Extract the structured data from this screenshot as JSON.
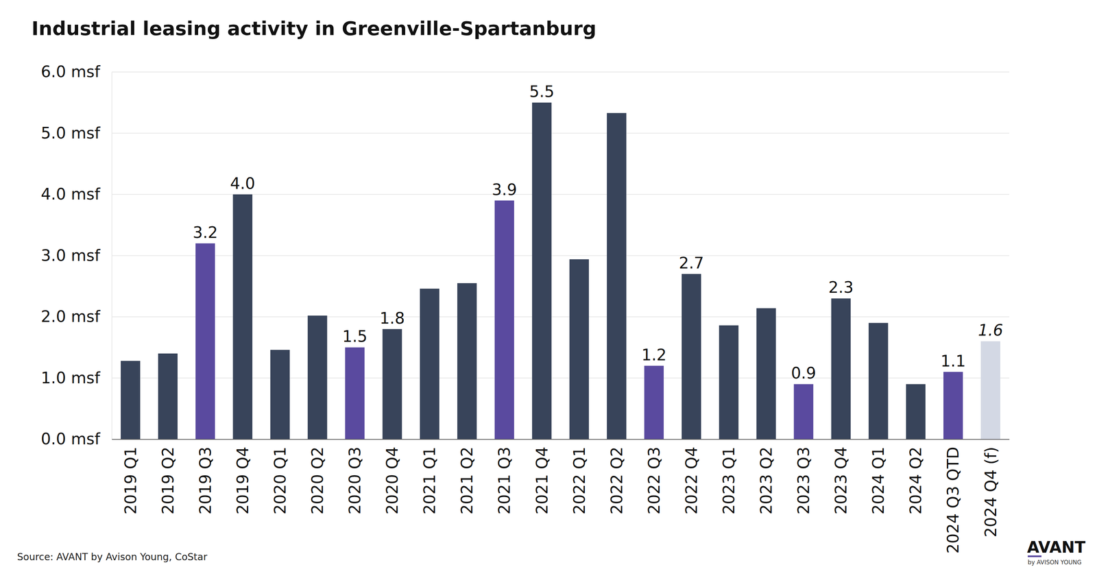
{
  "chart_data": {
    "type": "bar",
    "title": "Industrial leasing activity in Greenville-Spartanburg",
    "source": "Source: AVANT by Avison Young, CoStar",
    "logo": "AVANT",
    "logo_subtitle": "by AVISON YOUNG",
    "categories": [
      "2019 Q1",
      "2019 Q2",
      "2019 Q3",
      "2019 Q4",
      "2020 Q1",
      "2020 Q2",
      "2020 Q3",
      "2020 Q4",
      "2021 Q1",
      "2021 Q2",
      "2021 Q3",
      "2021 Q4",
      "2022 Q1",
      "2022 Q2",
      "2022 Q3",
      "2022 Q4",
      "2023 Q1",
      "2023 Q2",
      "2023 Q3",
      "2023 Q4",
      "2024 Q1",
      "2024 Q2",
      "2024 Q3 QTD",
      "2024 Q4 (f)"
    ],
    "values": [
      1.28,
      1.4,
      3.2,
      4.0,
      1.46,
      2.02,
      1.5,
      1.8,
      2.46,
      2.55,
      3.9,
      5.5,
      2.94,
      5.33,
      1.2,
      2.7,
      1.86,
      2.14,
      0.9,
      2.3,
      1.9,
      0.9,
      1.1,
      1.6
    ],
    "value_labels": [
      null,
      null,
      "3.2",
      "4.0",
      null,
      null,
      "1.5",
      "1.8",
      null,
      null,
      "3.9",
      "5.5",
      null,
      null,
      "1.2",
      "2.7",
      null,
      null,
      "0.9",
      "2.3",
      null,
      null,
      "1.1",
      "1.6"
    ],
    "colors": [
      "#38445a",
      "#38445a",
      "#5a4a9f",
      "#38445a",
      "#38445a",
      "#38445a",
      "#5a4a9f",
      "#38445a",
      "#38445a",
      "#38445a",
      "#5a4a9f",
      "#38445a",
      "#38445a",
      "#38445a",
      "#5a4a9f",
      "#38445a",
      "#38445a",
      "#38445a",
      "#5a4a9f",
      "#38445a",
      "#38445a",
      "#38445a",
      "#5a4a9f",
      "#d3d8e4"
    ],
    "ylim": [
      0,
      6
    ],
    "yticks": [
      {
        "value": 0,
        "label": "0.0 msf"
      },
      {
        "value": 1,
        "label": "1.0 msf"
      },
      {
        "value": 2,
        "label": "2.0 msf"
      },
      {
        "value": 3,
        "label": "3.0 msf"
      },
      {
        "value": 4,
        "label": "4.0 msf"
      },
      {
        "value": 5,
        "label": "5.0 msf"
      },
      {
        "value": 6,
        "label": "6.0 msf"
      }
    ],
    "grid": true,
    "data_labels": true
  }
}
